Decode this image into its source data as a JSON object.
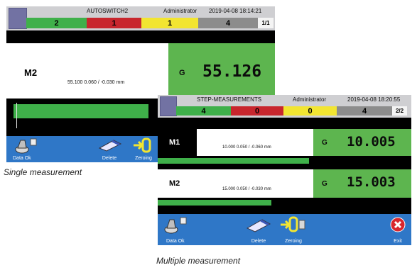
{
  "single": {
    "header": {
      "program": "AUTOSWITCH2",
      "user": "Administrator",
      "datetime": "2019-04-08 18:14:21",
      "counts": [
        "2",
        "1",
        "1",
        "4"
      ],
      "page": "1/1"
    },
    "measurements": [
      {
        "name": "M2",
        "nominal_tol": "55.100 0.060 / -0.030 mm",
        "grade": "G",
        "value": "55.126"
      }
    ],
    "toolbar": {
      "data_ok": "Data Ok",
      "delete": "Delete",
      "zeroing": "Zeroing"
    }
  },
  "multiple": {
    "header": {
      "program": "STEP-MEASUREMENTS",
      "user": "Administrator",
      "datetime": "2019-04-08 18:20:55",
      "counts": [
        "4",
        "0",
        "0",
        "4"
      ],
      "page": "2/2"
    },
    "measurements": [
      {
        "name": "M1",
        "nominal_tol": "10.000 0.050 / -0.060 mm",
        "grade": "G",
        "value": "10.005"
      },
      {
        "name": "M2",
        "nominal_tol": "15.000 0.050 / -0.030 mm",
        "grade": "G",
        "value": "15.003"
      }
    ],
    "toolbar": {
      "data_ok": "Data Ok",
      "delete": "Delete",
      "zeroing": "Zeroing",
      "exit": "Exit"
    }
  },
  "captions": {
    "single": "Single measurement",
    "multiple": "Multiple measurement"
  },
  "colors": {
    "ok": "#3fb04a",
    "nok": "#c8262d",
    "warn": "#f2e531",
    "neutral": "#8c8c8c",
    "toolbar": "#2f77c7",
    "value_bg": "#5db54f"
  }
}
